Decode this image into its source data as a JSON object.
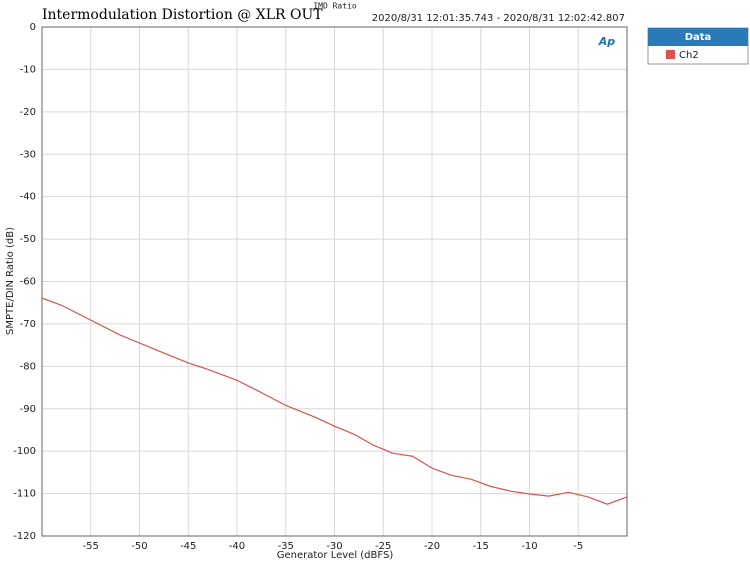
{
  "chart_data": {
    "type": "line",
    "title": "Intermodulation Distortion @ XLR OUT",
    "subtitle": "IMD Ratio",
    "timestamp": "2020/8/31 12:01:35.743 - 2020/8/31 12:02:42.807",
    "logo": "Ap",
    "x_label": "Generator Level (dBFS)",
    "y_label": "SMPTE/DIN Ratio (dB)",
    "legend_title": "Data",
    "x": [
      -60,
      -58,
      -55,
      -52,
      -50,
      -48,
      -45,
      -43,
      -40,
      -38,
      -35,
      -32,
      -30,
      -28,
      -26,
      -24,
      -22,
      -20,
      -18,
      -16,
      -14,
      -12,
      -10,
      -8,
      -6,
      -4,
      -2,
      0
    ],
    "series": [
      {
        "name": "Ch2",
        "color": "#d9534f",
        "values": [
          -63.9,
          -65.6,
          -69.1,
          -72.6,
          -74.5,
          -76.4,
          -79.2,
          -80.7,
          -83.3,
          -85.6,
          -89.2,
          -92,
          -94.1,
          -96,
          -98.6,
          -100.5,
          -101.2,
          -104,
          -105.7,
          -106.6,
          -108.3,
          -109.4,
          -110.1,
          -110.6,
          -109.7,
          -110.8,
          -112.5,
          -110.8
        ]
      }
    ],
    "xlim": [
      -60,
      0
    ],
    "ylim": [
      -120,
      0
    ],
    "xticks": [
      -55,
      -50,
      -45,
      -40,
      -35,
      -30,
      -25,
      -20,
      -15,
      -10,
      -5
    ],
    "yticks": [
      0,
      -10,
      -20,
      -30,
      -40,
      -50,
      -60,
      -70,
      -80,
      -90,
      -100,
      -110,
      -120
    ],
    "grid": true
  }
}
